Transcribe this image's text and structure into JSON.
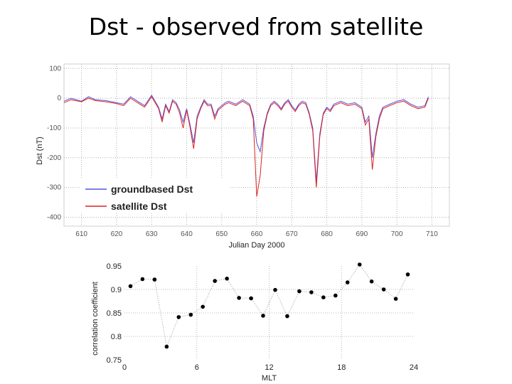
{
  "slide": {
    "title": "Dst - observed from satellite"
  },
  "chart_data": [
    {
      "type": "line",
      "title": "",
      "xlabel": "Julian Day 2000",
      "ylabel": "Dst (nT)",
      "xlim": [
        605,
        715
      ],
      "ylim": [
        -430,
        115
      ],
      "x_ticks": [
        610,
        620,
        630,
        640,
        650,
        660,
        670,
        680,
        690,
        700,
        710
      ],
      "y_ticks": [
        100,
        0,
        -100,
        -200,
        -300,
        -400
      ],
      "legend": {
        "placement": "bottom-left"
      },
      "series": [
        {
          "name": "groundbased Dst",
          "color": "#5555dd",
          "x": [
            605,
            607,
            610,
            612,
            614,
            617,
            620,
            622,
            624,
            626,
            628,
            630,
            632,
            633,
            634,
            635,
            636,
            637,
            638,
            639,
            640,
            641,
            642,
            643,
            644,
            645,
            646,
            647,
            648,
            649,
            650,
            651,
            652,
            654,
            656,
            658,
            659,
            660,
            661,
            662,
            663,
            664,
            665,
            666,
            667,
            668,
            669,
            670,
            671,
            672,
            673,
            674,
            675,
            676,
            677,
            678,
            679,
            680,
            681,
            682,
            684,
            686,
            688,
            690,
            691,
            692,
            693,
            694,
            695,
            696,
            698,
            700,
            702,
            704,
            706,
            708,
            709
          ],
          "values": [
            -10,
            0,
            -10,
            5,
            -5,
            -8,
            -15,
            -20,
            5,
            -10,
            -25,
            10,
            -30,
            -70,
            -20,
            -45,
            -5,
            -15,
            -40,
            -80,
            -35,
            -90,
            -150,
            -60,
            -30,
            -5,
            -20,
            -20,
            -60,
            -35,
            -25,
            -15,
            -10,
            -20,
            -5,
            -20,
            -60,
            -150,
            -180,
            -100,
            -50,
            -20,
            -10,
            -20,
            -35,
            -15,
            -5,
            -25,
            -40,
            -20,
            -10,
            -15,
            -50,
            -100,
            -280,
            -120,
            -50,
            -30,
            -40,
            -20,
            -10,
            -20,
            -15,
            -30,
            -80,
            -60,
            -200,
            -120,
            -60,
            -30,
            -20,
            -10,
            -5,
            -20,
            -30,
            -25,
            5
          ]
        },
        {
          "name": "satellite Dst",
          "color": "#dd2222",
          "x": [
            605,
            607,
            610,
            612,
            614,
            617,
            620,
            622,
            624,
            626,
            628,
            630,
            632,
            633,
            634,
            635,
            636,
            637,
            638,
            639,
            640,
            641,
            642,
            643,
            644,
            645,
            646,
            647,
            648,
            649,
            650,
            651,
            652,
            654,
            656,
            658,
            659,
            660,
            661,
            662,
            663,
            664,
            665,
            666,
            667,
            668,
            669,
            670,
            671,
            672,
            673,
            674,
            675,
            676,
            677,
            678,
            679,
            680,
            681,
            682,
            684,
            686,
            688,
            690,
            691,
            692,
            693,
            694,
            695,
            696,
            698,
            700,
            702,
            704,
            706,
            708,
            709
          ],
          "values": [
            -15,
            -5,
            -12,
            0,
            -8,
            -12,
            -18,
            -25,
            0,
            -15,
            -30,
            5,
            -35,
            -80,
            -25,
            -50,
            -10,
            -20,
            -50,
            -100,
            -40,
            -100,
            -170,
            -70,
            -35,
            -10,
            -25,
            -25,
            -70,
            -40,
            -30,
            -20,
            -15,
            -25,
            -10,
            -25,
            -70,
            -330,
            -260,
            -110,
            -55,
            -25,
            -15,
            -25,
            -40,
            -20,
            -10,
            -30,
            -45,
            -25,
            -15,
            -20,
            -55,
            -110,
            -300,
            -130,
            -55,
            -35,
            -45,
            -25,
            -15,
            -25,
            -20,
            -35,
            -90,
            -70,
            -240,
            -130,
            -70,
            -35,
            -25,
            -15,
            -10,
            -25,
            -35,
            -30,
            0
          ]
        }
      ]
    },
    {
      "type": "scatter",
      "title": "",
      "xlabel": "MLT",
      "ylabel": "correlation coefficient",
      "xlim": [
        0,
        24
      ],
      "ylim": [
        0.75,
        0.95
      ],
      "x_ticks": [
        0,
        6,
        12,
        18,
        24
      ],
      "y_ticks": [
        0.95,
        0.9,
        0.85,
        0.8,
        0.75
      ],
      "x_tick_labels": [
        "0",
        "6",
        "12",
        "18",
        "24"
      ],
      "y_tick_labels": [
        "0.95",
        "0.9",
        "0.85",
        "0.8",
        "0.75"
      ],
      "gridlines": "dotted",
      "x": [
        0.5,
        1.5,
        2.5,
        3.5,
        4.5,
        5.5,
        6.5,
        7.5,
        8.5,
        9.5,
        10.5,
        11.5,
        12.5,
        13.5,
        14.5,
        15.5,
        16.5,
        17.5,
        18.5,
        19.5,
        20.5,
        21.5,
        22.5,
        23.5
      ],
      "values": [
        0.907,
        0.922,
        0.921,
        0.778,
        0.841,
        0.846,
        0.863,
        0.918,
        0.923,
        0.882,
        0.881,
        0.844,
        0.899,
        0.843,
        0.896,
        0.894,
        0.883,
        0.887,
        0.915,
        0.953,
        0.917,
        0.9,
        0.88,
        0.932
      ]
    }
  ]
}
